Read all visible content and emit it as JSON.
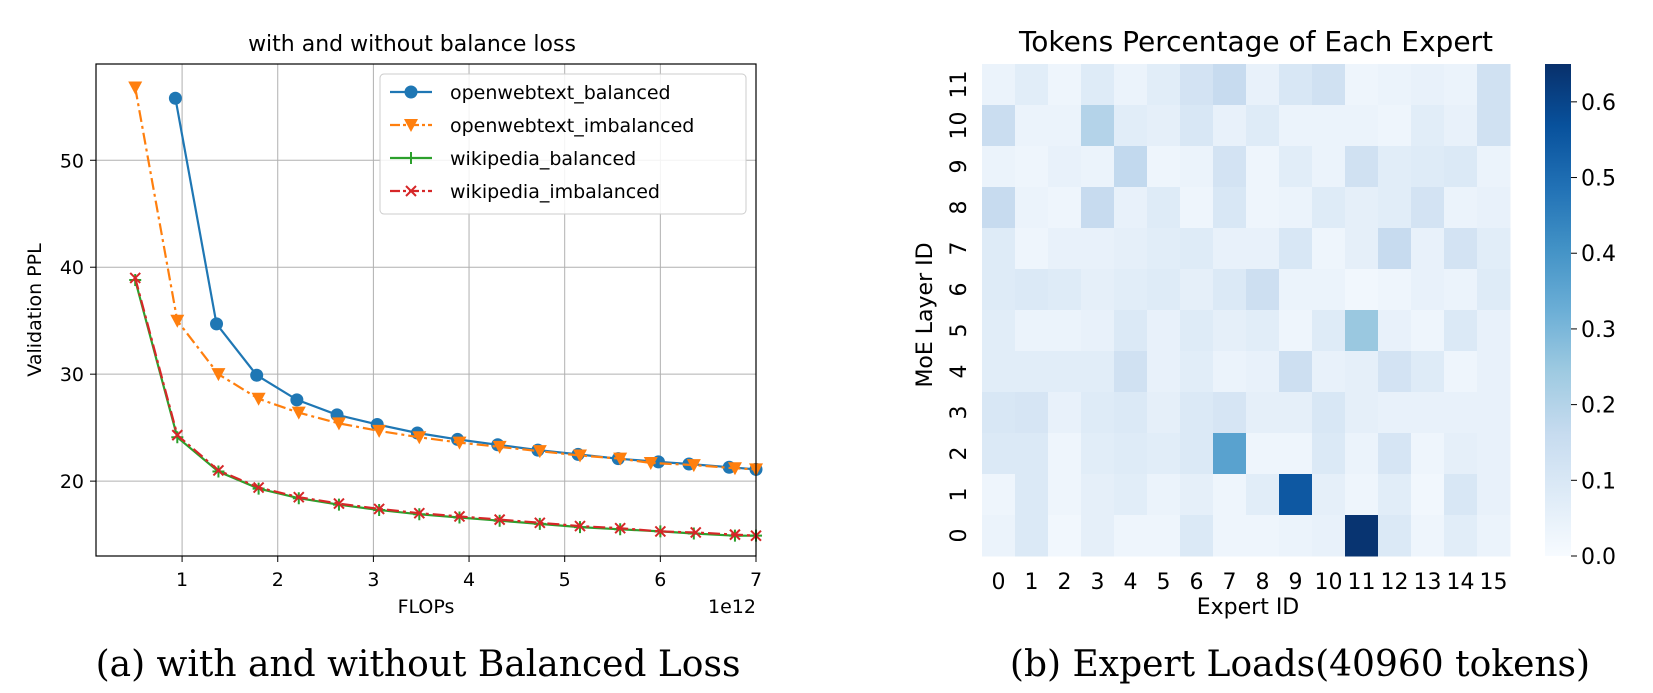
{
  "chart_data": [
    {
      "type": "line",
      "title": "with and without balance loss",
      "xlabel": "FLOPs",
      "ylabel": "Validation PPL",
      "x_scale_label": "1e12",
      "xlim": [
        0.1,
        7.0
      ],
      "ylim": [
        13.0,
        59.0
      ],
      "xticks": [
        1,
        2,
        3,
        4,
        5,
        6,
        7
      ],
      "yticks": [
        20,
        30,
        40,
        50
      ],
      "grid": true,
      "legend_position": "top-right",
      "caption": "(a) with and without Balanced Loss",
      "series": [
        {
          "name": "openwebtext_balanced",
          "color": "#1f77b4",
          "marker": "circle",
          "linestyle": "solid",
          "x": [
            0.93,
            1.36,
            1.78,
            2.2,
            2.62,
            3.04,
            3.46,
            3.88,
            4.3,
            4.72,
            5.14,
            5.56,
            5.98,
            6.3,
            6.72,
            7.0
          ],
          "y": [
            55.8,
            34.7,
            29.9,
            27.6,
            26.2,
            25.3,
            24.5,
            23.9,
            23.4,
            22.9,
            22.5,
            22.1,
            21.8,
            21.6,
            21.3,
            21.1
          ]
        },
        {
          "name": "openwebtext_imbalanced",
          "color": "#ff7f0e",
          "marker": "triangle-down",
          "linestyle": "dashdot",
          "x": [
            0.51,
            0.95,
            1.38,
            1.8,
            2.22,
            2.64,
            3.06,
            3.48,
            3.9,
            4.32,
            4.74,
            5.16,
            5.58,
            5.9,
            6.35,
            6.78,
            7.0
          ],
          "y": [
            56.8,
            35.0,
            30.0,
            27.7,
            26.4,
            25.4,
            24.7,
            24.1,
            23.6,
            23.2,
            22.8,
            22.4,
            22.1,
            21.7,
            21.5,
            21.2,
            21.1
          ]
        },
        {
          "name": "wikipedia_balanced",
          "color": "#2ca02c",
          "marker": "plus",
          "linestyle": "solid",
          "x": [
            0.51,
            0.95,
            1.38,
            1.8,
            2.22,
            2.64,
            3.06,
            3.48,
            3.9,
            4.32,
            4.74,
            5.16,
            5.58,
            6.0,
            6.35,
            6.78,
            7.0
          ],
          "y": [
            38.8,
            24.1,
            20.9,
            19.3,
            18.4,
            17.8,
            17.3,
            16.9,
            16.6,
            16.3,
            16.0,
            15.7,
            15.5,
            15.3,
            15.1,
            14.9,
            14.9
          ]
        },
        {
          "name": "wikipedia_imbalanced",
          "color": "#d62728",
          "marker": "x",
          "linestyle": "dashdot",
          "x": [
            0.51,
            0.95,
            1.38,
            1.8,
            2.22,
            2.64,
            3.06,
            3.48,
            3.9,
            4.32,
            4.74,
            5.16,
            5.58,
            6.0,
            6.37,
            6.78,
            7.0
          ],
          "y": [
            39.0,
            24.3,
            21.0,
            19.4,
            18.5,
            17.9,
            17.4,
            17.0,
            16.7,
            16.4,
            16.1,
            15.8,
            15.6,
            15.3,
            15.2,
            15.0,
            14.9
          ]
        }
      ]
    },
    {
      "type": "heatmap",
      "title": "Tokens Percentage of Each Expert",
      "xlabel": "Expert ID",
      "ylabel": "MoE Layer ID",
      "x_categories": [
        "0",
        "1",
        "2",
        "3",
        "4",
        "5",
        "6",
        "7",
        "8",
        "9",
        "10",
        "11",
        "12",
        "13",
        "14",
        "15"
      ],
      "y_categories_top_to_bottom": [
        "11",
        "10",
        "9",
        "8",
        "7",
        "6",
        "5",
        "4",
        "3",
        "2",
        "1",
        "0"
      ],
      "colorbar": {
        "min": 0.0,
        "max": 0.65,
        "ticks": [
          0.0,
          0.1,
          0.2,
          0.3,
          0.4,
          0.5,
          0.6
        ],
        "colormap": "Blues"
      },
      "caption": "(b) Expert Loads(40960 tokens)",
      "values_top_to_bottom": [
        [
          0.04,
          0.07,
          0.03,
          0.08,
          0.04,
          0.07,
          0.12,
          0.16,
          0.05,
          0.1,
          0.13,
          0.03,
          0.04,
          0.05,
          0.04,
          0.13
        ],
        [
          0.15,
          0.04,
          0.04,
          0.2,
          0.07,
          0.06,
          0.1,
          0.05,
          0.08,
          0.04,
          0.04,
          0.04,
          0.03,
          0.07,
          0.05,
          0.13
        ],
        [
          0.04,
          0.03,
          0.05,
          0.04,
          0.17,
          0.03,
          0.04,
          0.12,
          0.03,
          0.07,
          0.04,
          0.13,
          0.07,
          0.08,
          0.09,
          0.04
        ],
        [
          0.16,
          0.04,
          0.03,
          0.16,
          0.05,
          0.08,
          0.03,
          0.1,
          0.03,
          0.04,
          0.08,
          0.06,
          0.07,
          0.12,
          0.04,
          0.05
        ],
        [
          0.08,
          0.03,
          0.05,
          0.05,
          0.06,
          0.07,
          0.08,
          0.05,
          0.05,
          0.1,
          0.03,
          0.06,
          0.16,
          0.05,
          0.12,
          0.07
        ],
        [
          0.08,
          0.09,
          0.08,
          0.06,
          0.07,
          0.08,
          0.06,
          0.09,
          0.14,
          0.04,
          0.04,
          0.02,
          0.03,
          0.05,
          0.04,
          0.08
        ],
        [
          0.07,
          0.04,
          0.04,
          0.05,
          0.09,
          0.05,
          0.08,
          0.06,
          0.07,
          0.03,
          0.08,
          0.25,
          0.05,
          0.03,
          0.09,
          0.05
        ],
        [
          0.07,
          0.07,
          0.07,
          0.07,
          0.13,
          0.05,
          0.07,
          0.04,
          0.05,
          0.14,
          0.05,
          0.06,
          0.12,
          0.08,
          0.03,
          0.05
        ],
        [
          0.1,
          0.11,
          0.05,
          0.08,
          0.09,
          0.06,
          0.09,
          0.11,
          0.06,
          0.06,
          0.1,
          0.06,
          0.05,
          0.05,
          0.05,
          0.05
        ],
        [
          0.09,
          0.09,
          0.03,
          0.07,
          0.08,
          0.07,
          0.09,
          0.36,
          0.03,
          0.03,
          0.09,
          0.04,
          0.11,
          0.03,
          0.06,
          0.05
        ],
        [
          0.03,
          0.09,
          0.03,
          0.06,
          0.07,
          0.04,
          0.06,
          0.03,
          0.07,
          0.55,
          0.06,
          0.03,
          0.07,
          0.02,
          0.1,
          0.05
        ],
        [
          0.04,
          0.09,
          0.02,
          0.06,
          0.03,
          0.03,
          0.09,
          0.03,
          0.03,
          0.04,
          0.05,
          0.64,
          0.09,
          0.03,
          0.07,
          0.04
        ]
      ]
    }
  ]
}
